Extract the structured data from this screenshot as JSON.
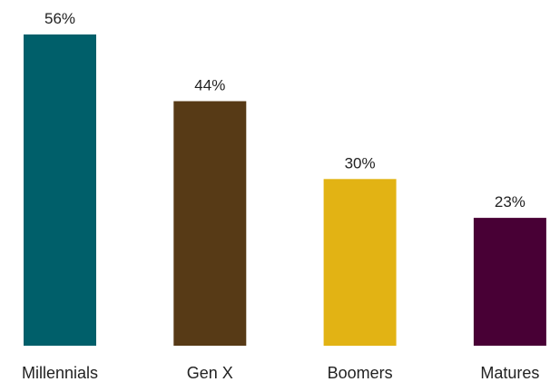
{
  "chart_data": {
    "type": "bar",
    "title": "",
    "xlabel": "",
    "ylabel": "",
    "categories": [
      "Millennials",
      "Gen X",
      "Boomers",
      "Matures"
    ],
    "values": [
      56,
      44,
      30,
      23
    ],
    "value_labels": [
      "56%",
      "44%",
      "30%",
      "23%"
    ],
    "colors": [
      "#005F6A",
      "#573A16",
      "#E2B314",
      "#480035"
    ],
    "ylim": [
      0,
      56
    ],
    "grid": false,
    "legend": "none"
  }
}
